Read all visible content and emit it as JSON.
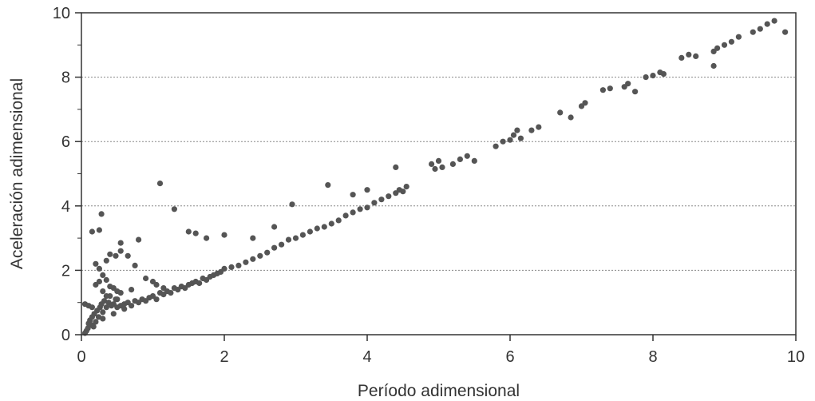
{
  "chart_data": {
    "type": "scatter",
    "title": "",
    "xlabel": "Período adimensional",
    "ylabel": "Aceleración adimensional",
    "xlim": [
      0,
      10
    ],
    "ylim": [
      0,
      10
    ],
    "xticks": [
      0,
      2,
      4,
      6,
      8,
      10
    ],
    "yticks": [
      0,
      2,
      4,
      6,
      8,
      10
    ],
    "grid": "horizontal dotted lines at y = 2, 4, 6, 8",
    "legend": "none",
    "colors": {
      "points": "#555555",
      "axes": "#333333",
      "grid": "#888888"
    },
    "series": [
      {
        "points": [
          [
            0.05,
            0.05
          ],
          [
            0.07,
            0.12
          ],
          [
            0.09,
            0.2
          ],
          [
            0.1,
            0.35
          ],
          [
            0.12,
            0.45
          ],
          [
            0.14,
            0.3
          ],
          [
            0.15,
            0.55
          ],
          [
            0.17,
            0.25
          ],
          [
            0.18,
            0.65
          ],
          [
            0.2,
            0.4
          ],
          [
            0.22,
            0.75
          ],
          [
            0.24,
            0.55
          ],
          [
            0.26,
            0.85
          ],
          [
            0.28,
            0.95
          ],
          [
            0.3,
            0.7
          ],
          [
            0.32,
            1.05
          ],
          [
            0.35,
            0.85
          ],
          [
            0.38,
            1.0
          ],
          [
            0.4,
            1.2
          ],
          [
            0.42,
            0.9
          ],
          [
            0.45,
            0.95
          ],
          [
            0.48,
            1.1
          ],
          [
            0.5,
            0.85
          ],
          [
            0.55,
            0.9
          ],
          [
            0.6,
            0.95
          ],
          [
            0.65,
            1.0
          ],
          [
            0.7,
            0.9
          ],
          [
            0.75,
            1.05
          ],
          [
            0.8,
            1.0
          ],
          [
            0.85,
            1.1
          ],
          [
            0.9,
            1.05
          ],
          [
            0.95,
            1.15
          ],
          [
            1.0,
            1.2
          ],
          [
            1.05,
            1.1
          ],
          [
            1.1,
            1.3
          ],
          [
            1.15,
            1.25
          ],
          [
            1.2,
            1.35
          ],
          [
            1.25,
            1.3
          ],
          [
            1.3,
            1.45
          ],
          [
            1.35,
            1.4
          ],
          [
            1.4,
            1.5
          ],
          [
            1.45,
            1.45
          ],
          [
            1.5,
            1.55
          ],
          [
            1.55,
            1.6
          ],
          [
            1.6,
            1.65
          ],
          [
            1.65,
            1.6
          ],
          [
            1.7,
            1.75
          ],
          [
            1.75,
            1.7
          ],
          [
            1.8,
            1.8
          ],
          [
            1.85,
            1.85
          ],
          [
            1.9,
            1.9
          ],
          [
            1.95,
            1.95
          ],
          [
            2.0,
            2.05
          ],
          [
            2.1,
            2.1
          ],
          [
            2.2,
            2.15
          ],
          [
            2.3,
            2.25
          ],
          [
            2.4,
            2.35
          ],
          [
            2.5,
            2.45
          ],
          [
            2.6,
            2.55
          ],
          [
            2.7,
            2.7
          ],
          [
            2.8,
            2.8
          ],
          [
            2.9,
            2.95
          ],
          [
            3.0,
            3.0
          ],
          [
            3.1,
            3.1
          ],
          [
            3.2,
            3.2
          ],
          [
            3.3,
            3.3
          ],
          [
            3.4,
            3.35
          ],
          [
            3.5,
            3.45
          ],
          [
            3.6,
            3.55
          ],
          [
            3.7,
            3.7
          ],
          [
            3.8,
            3.8
          ],
          [
            3.9,
            3.9
          ],
          [
            4.0,
            3.95
          ],
          [
            4.1,
            4.1
          ],
          [
            4.2,
            4.2
          ],
          [
            4.3,
            4.3
          ],
          [
            4.4,
            4.4
          ],
          [
            4.5,
            4.45
          ],
          [
            4.55,
            4.6
          ],
          [
            4.45,
            4.5
          ],
          [
            4.9,
            5.3
          ],
          [
            4.95,
            5.15
          ],
          [
            5.0,
            5.4
          ],
          [
            5.05,
            5.2
          ],
          [
            5.2,
            5.3
          ],
          [
            5.3,
            5.45
          ],
          [
            5.4,
            5.55
          ],
          [
            5.5,
            5.4
          ],
          [
            5.8,
            5.85
          ],
          [
            5.9,
            6.0
          ],
          [
            6.0,
            6.05
          ],
          [
            6.05,
            6.2
          ],
          [
            6.1,
            6.35
          ],
          [
            6.15,
            6.1
          ],
          [
            6.3,
            6.35
          ],
          [
            6.4,
            6.45
          ],
          [
            6.7,
            6.9
          ],
          [
            6.85,
            6.75
          ],
          [
            7.0,
            7.1
          ],
          [
            7.05,
            7.2
          ],
          [
            7.3,
            7.6
          ],
          [
            7.4,
            7.65
          ],
          [
            7.6,
            7.7
          ],
          [
            7.65,
            7.8
          ],
          [
            7.75,
            7.55
          ],
          [
            7.9,
            8.0
          ],
          [
            8.0,
            8.05
          ],
          [
            8.1,
            8.15
          ],
          [
            8.15,
            8.1
          ],
          [
            8.4,
            8.6
          ],
          [
            8.5,
            8.7
          ],
          [
            8.6,
            8.65
          ],
          [
            8.85,
            8.8
          ],
          [
            8.9,
            8.9
          ],
          [
            9.0,
            9.0
          ],
          [
            9.1,
            9.1
          ],
          [
            9.2,
            9.25
          ],
          [
            9.4,
            9.4
          ],
          [
            9.5,
            9.5
          ],
          [
            9.6,
            9.65
          ],
          [
            9.7,
            9.75
          ],
          [
            9.85,
            9.4
          ],
          [
            8.85,
            8.35
          ],
          [
            0.05,
            0.95
          ],
          [
            0.1,
            0.9
          ],
          [
            0.15,
            3.2
          ],
          [
            0.25,
            3.25
          ],
          [
            0.28,
            3.75
          ],
          [
            0.2,
            2.2
          ],
          [
            0.25,
            2.05
          ],
          [
            0.3,
            1.85
          ],
          [
            0.35,
            1.7
          ],
          [
            0.4,
            1.5
          ],
          [
            0.45,
            1.45
          ],
          [
            0.5,
            1.35
          ],
          [
            0.55,
            1.3
          ],
          [
            0.35,
            2.3
          ],
          [
            0.4,
            2.5
          ],
          [
            0.48,
            2.45
          ],
          [
            0.55,
            2.6
          ],
          [
            0.55,
            2.85
          ],
          [
            0.65,
            2.45
          ],
          [
            0.75,
            2.15
          ],
          [
            0.8,
            2.95
          ],
          [
            0.9,
            1.75
          ],
          [
            1.0,
            1.65
          ],
          [
            1.05,
            1.55
          ],
          [
            1.15,
            1.45
          ],
          [
            1.1,
            4.7
          ],
          [
            1.3,
            3.9
          ],
          [
            1.5,
            3.2
          ],
          [
            1.6,
            3.15
          ],
          [
            1.75,
            3.0
          ],
          [
            2.0,
            3.1
          ],
          [
            2.4,
            3.0
          ],
          [
            2.7,
            3.35
          ],
          [
            2.95,
            4.05
          ],
          [
            3.45,
            4.65
          ],
          [
            3.8,
            4.35
          ],
          [
            4.0,
            4.5
          ],
          [
            4.4,
            5.2
          ],
          [
            0.2,
            1.55
          ],
          [
            0.25,
            1.65
          ],
          [
            0.3,
            1.35
          ],
          [
            0.15,
            0.85
          ],
          [
            0.3,
            0.5
          ],
          [
            0.45,
            0.65
          ],
          [
            0.6,
            0.8
          ],
          [
            0.35,
            1.2
          ],
          [
            0.5,
            1.1
          ],
          [
            0.7,
            1.4
          ]
        ]
      }
    ]
  }
}
